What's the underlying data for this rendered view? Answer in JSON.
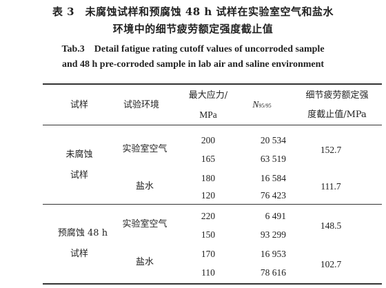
{
  "caption": {
    "zh_line1": "表 3　未腐蚀试样和预腐蚀 48 h 试样在实验室空气和盐水",
    "zh_line2": "环境中的细节疲劳额定强度截止值",
    "en_line1": "Tab.3　Detail fatigue rating cutoff values of uncorroded sample",
    "en_line2": "and 48 h pre-corroded sample in lab air and saline environment"
  },
  "table": {
    "headers": {
      "sample": "试样",
      "environment": "试验环境",
      "max_stress_line1": "最大应力/",
      "max_stress_line2": "MPa",
      "n_symbol": "N",
      "n_subscript": "95/95",
      "dfr_line1": "细节疲劳额定强",
      "dfr_line2": "度截止值/MPa"
    },
    "groups": [
      {
        "sample_line1": "未腐蚀",
        "sample_line2": "试样",
        "environments": [
          {
            "name": "实验室空气",
            "rows": [
              {
                "stress": "200",
                "n": "20 534"
              },
              {
                "stress": "165",
                "n": "63 519"
              }
            ],
            "dfr": "152.7"
          },
          {
            "name": "盐水",
            "rows": [
              {
                "stress": "180",
                "n": "16 584"
              },
              {
                "stress": "120",
                "n": "76 423"
              }
            ],
            "dfr": "111.7"
          }
        ]
      },
      {
        "sample_line1": "预腐蚀 48 h",
        "sample_line2": "试样",
        "environments": [
          {
            "name": "实验室空气",
            "rows": [
              {
                "stress": "220",
                "n": "6 491"
              },
              {
                "stress": "150",
                "n": "93 299"
              }
            ],
            "dfr": "148.5"
          },
          {
            "name": "盐水",
            "rows": [
              {
                "stress": "170",
                "n": "16 953"
              },
              {
                "stress": "110",
                "n": "78 616"
              }
            ],
            "dfr": "102.7"
          }
        ]
      }
    ]
  }
}
